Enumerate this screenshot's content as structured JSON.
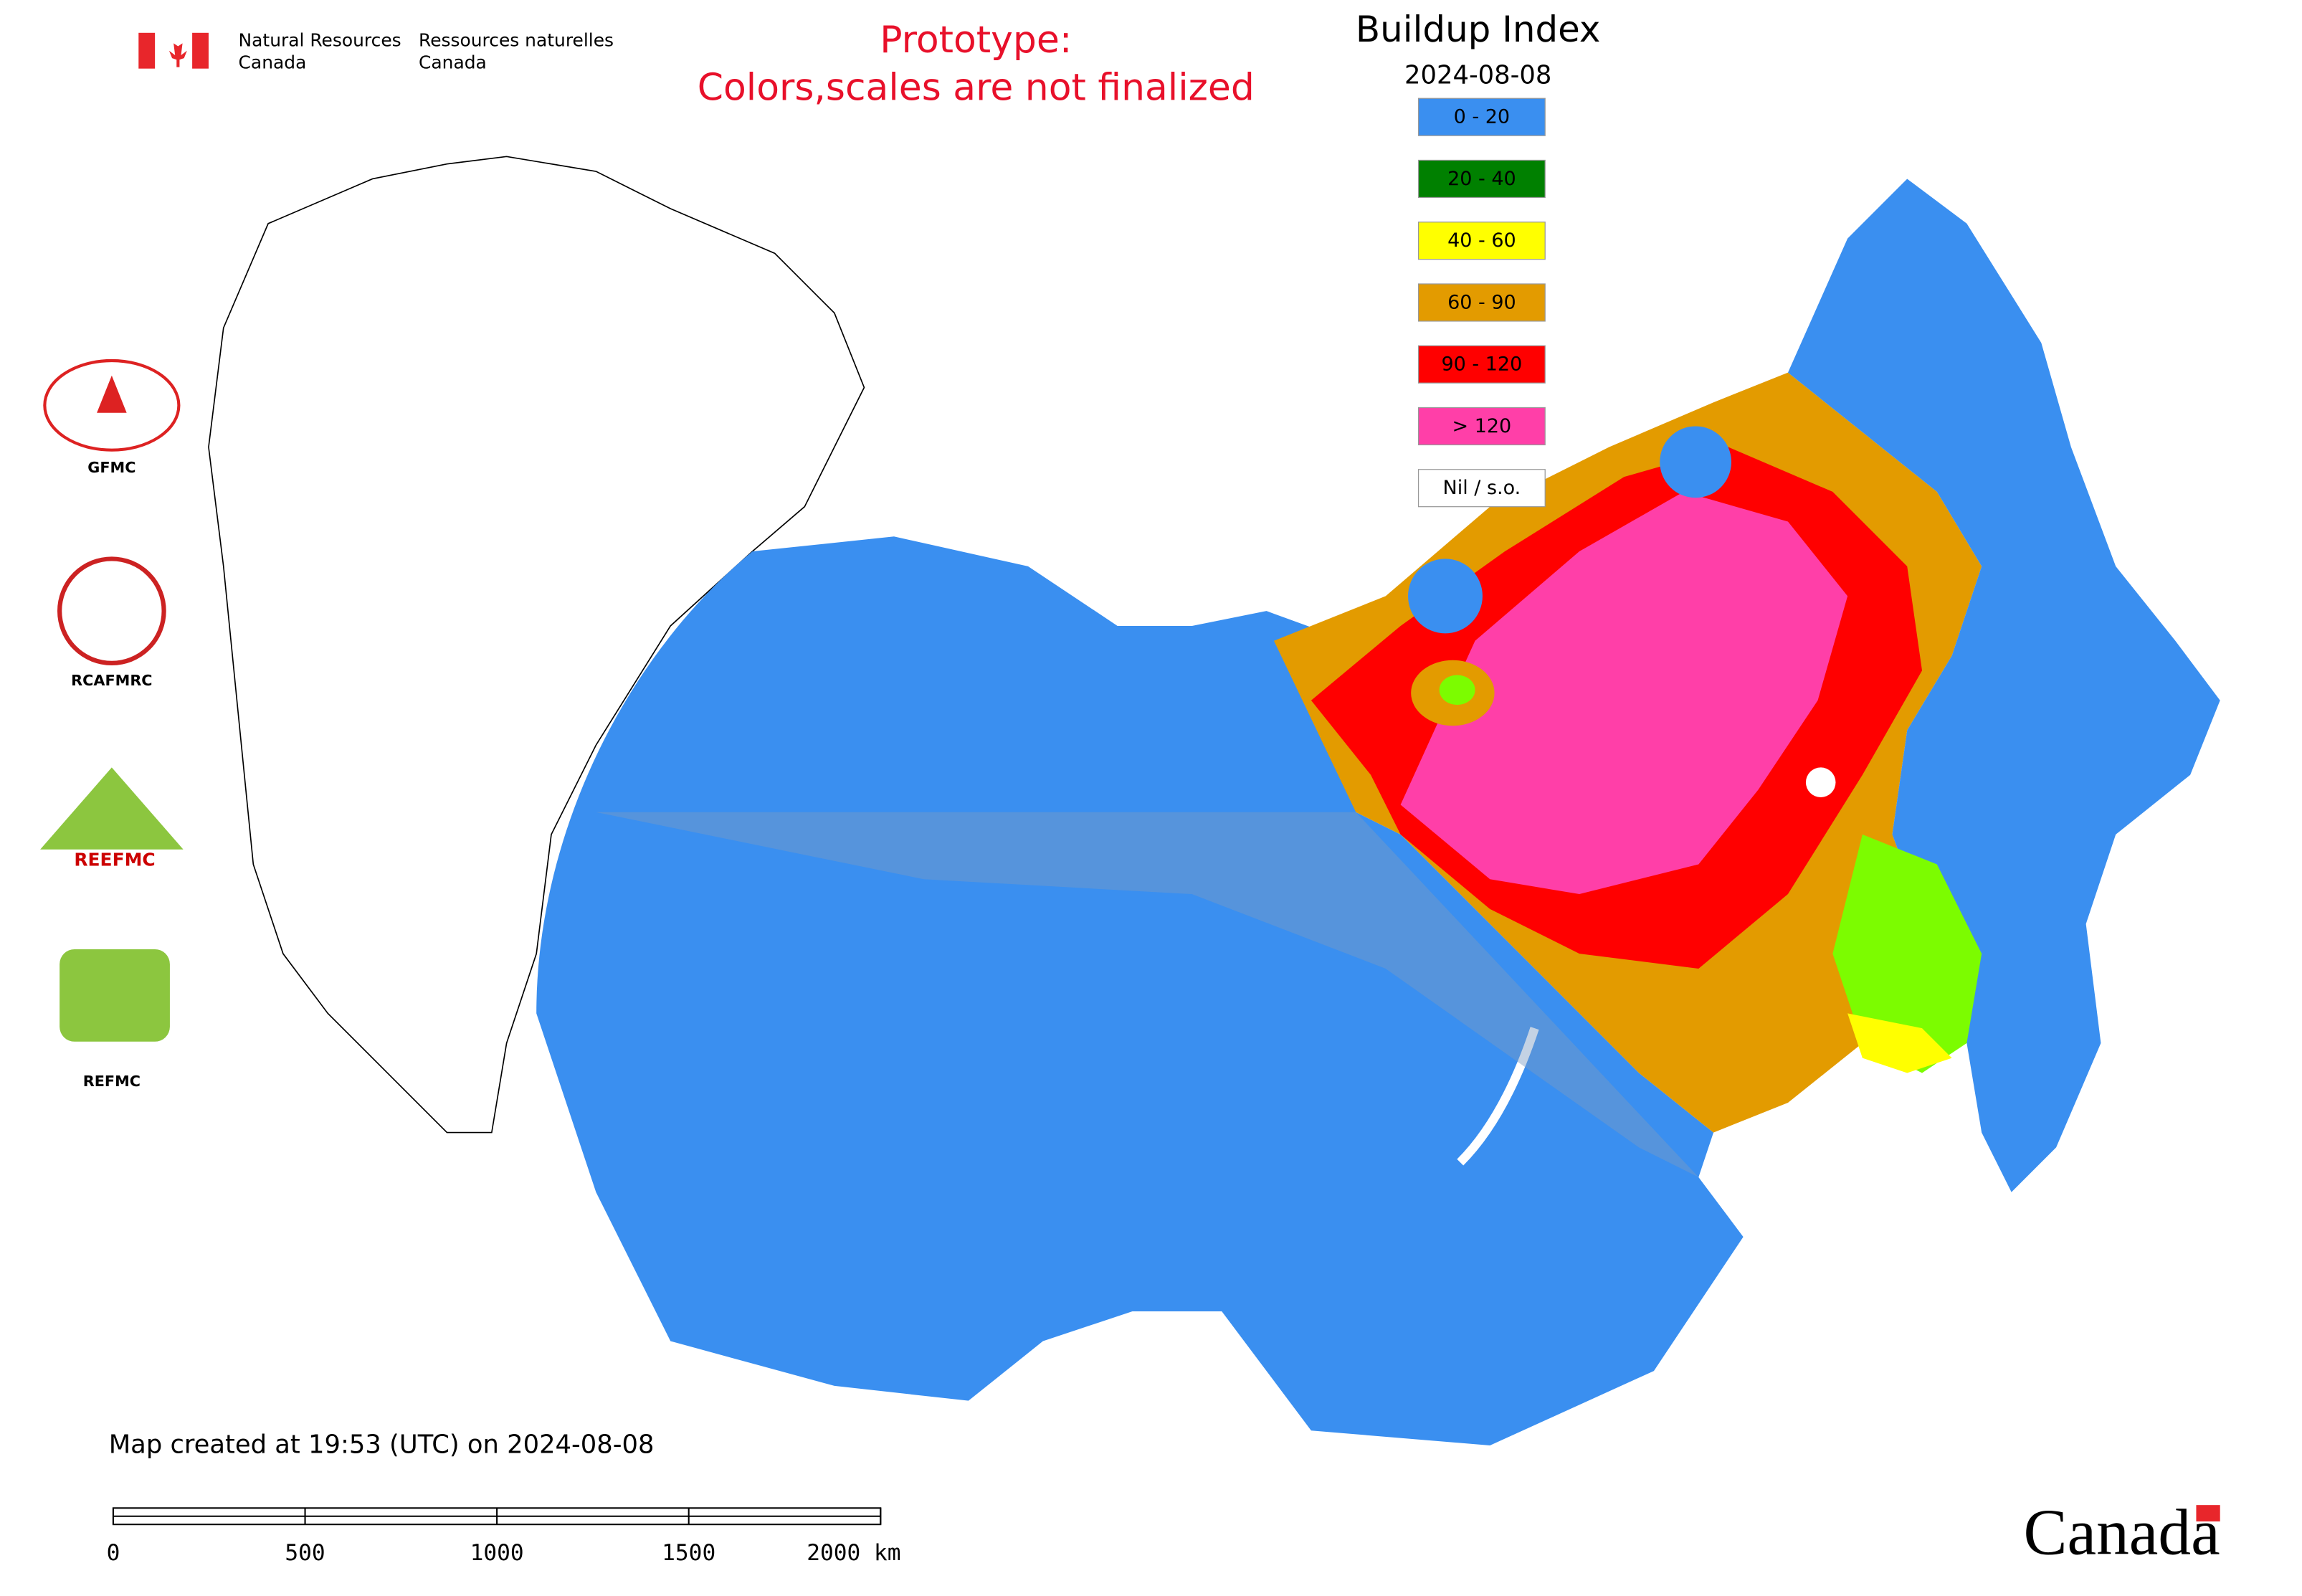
{
  "header": {
    "department_en": [
      "Natural Resources",
      "Canada"
    ],
    "department_fr": [
      "Ressources naturelles",
      "Canada"
    ],
    "notice": [
      "Prototype:",
      "Colors,scales are not finalized"
    ]
  },
  "legend": {
    "title": "Buildup Index",
    "date": "2024-08-08",
    "items": [
      {
        "label": "0 - 20",
        "color": "#3a8ff0"
      },
      {
        "label": "20 - 40",
        "color": "#008000"
      },
      {
        "label": "40 - 60",
        "color": "#ffff00"
      },
      {
        "label": "60 - 90",
        "color": "#e39b00"
      },
      {
        "label": "90 - 120",
        "color": "#ff0000"
      },
      {
        "label": "> 120",
        "color": "#ff3fa8"
      },
      {
        "label": "Nil / s.o.",
        "color": "#ffffff"
      }
    ]
  },
  "logos": [
    "GFMC",
    "RCAFMRC",
    "REEFMC",
    "REFMC"
  ],
  "footer": {
    "created": "Map created at 19:53 (UTC) on 2024-08-08",
    "wordmark": "Canada"
  },
  "scale_bar": {
    "ticks": [
      0,
      500,
      1000,
      1500,
      {
        "value": 2000,
        "label": "2000 km"
      }
    ]
  }
}
